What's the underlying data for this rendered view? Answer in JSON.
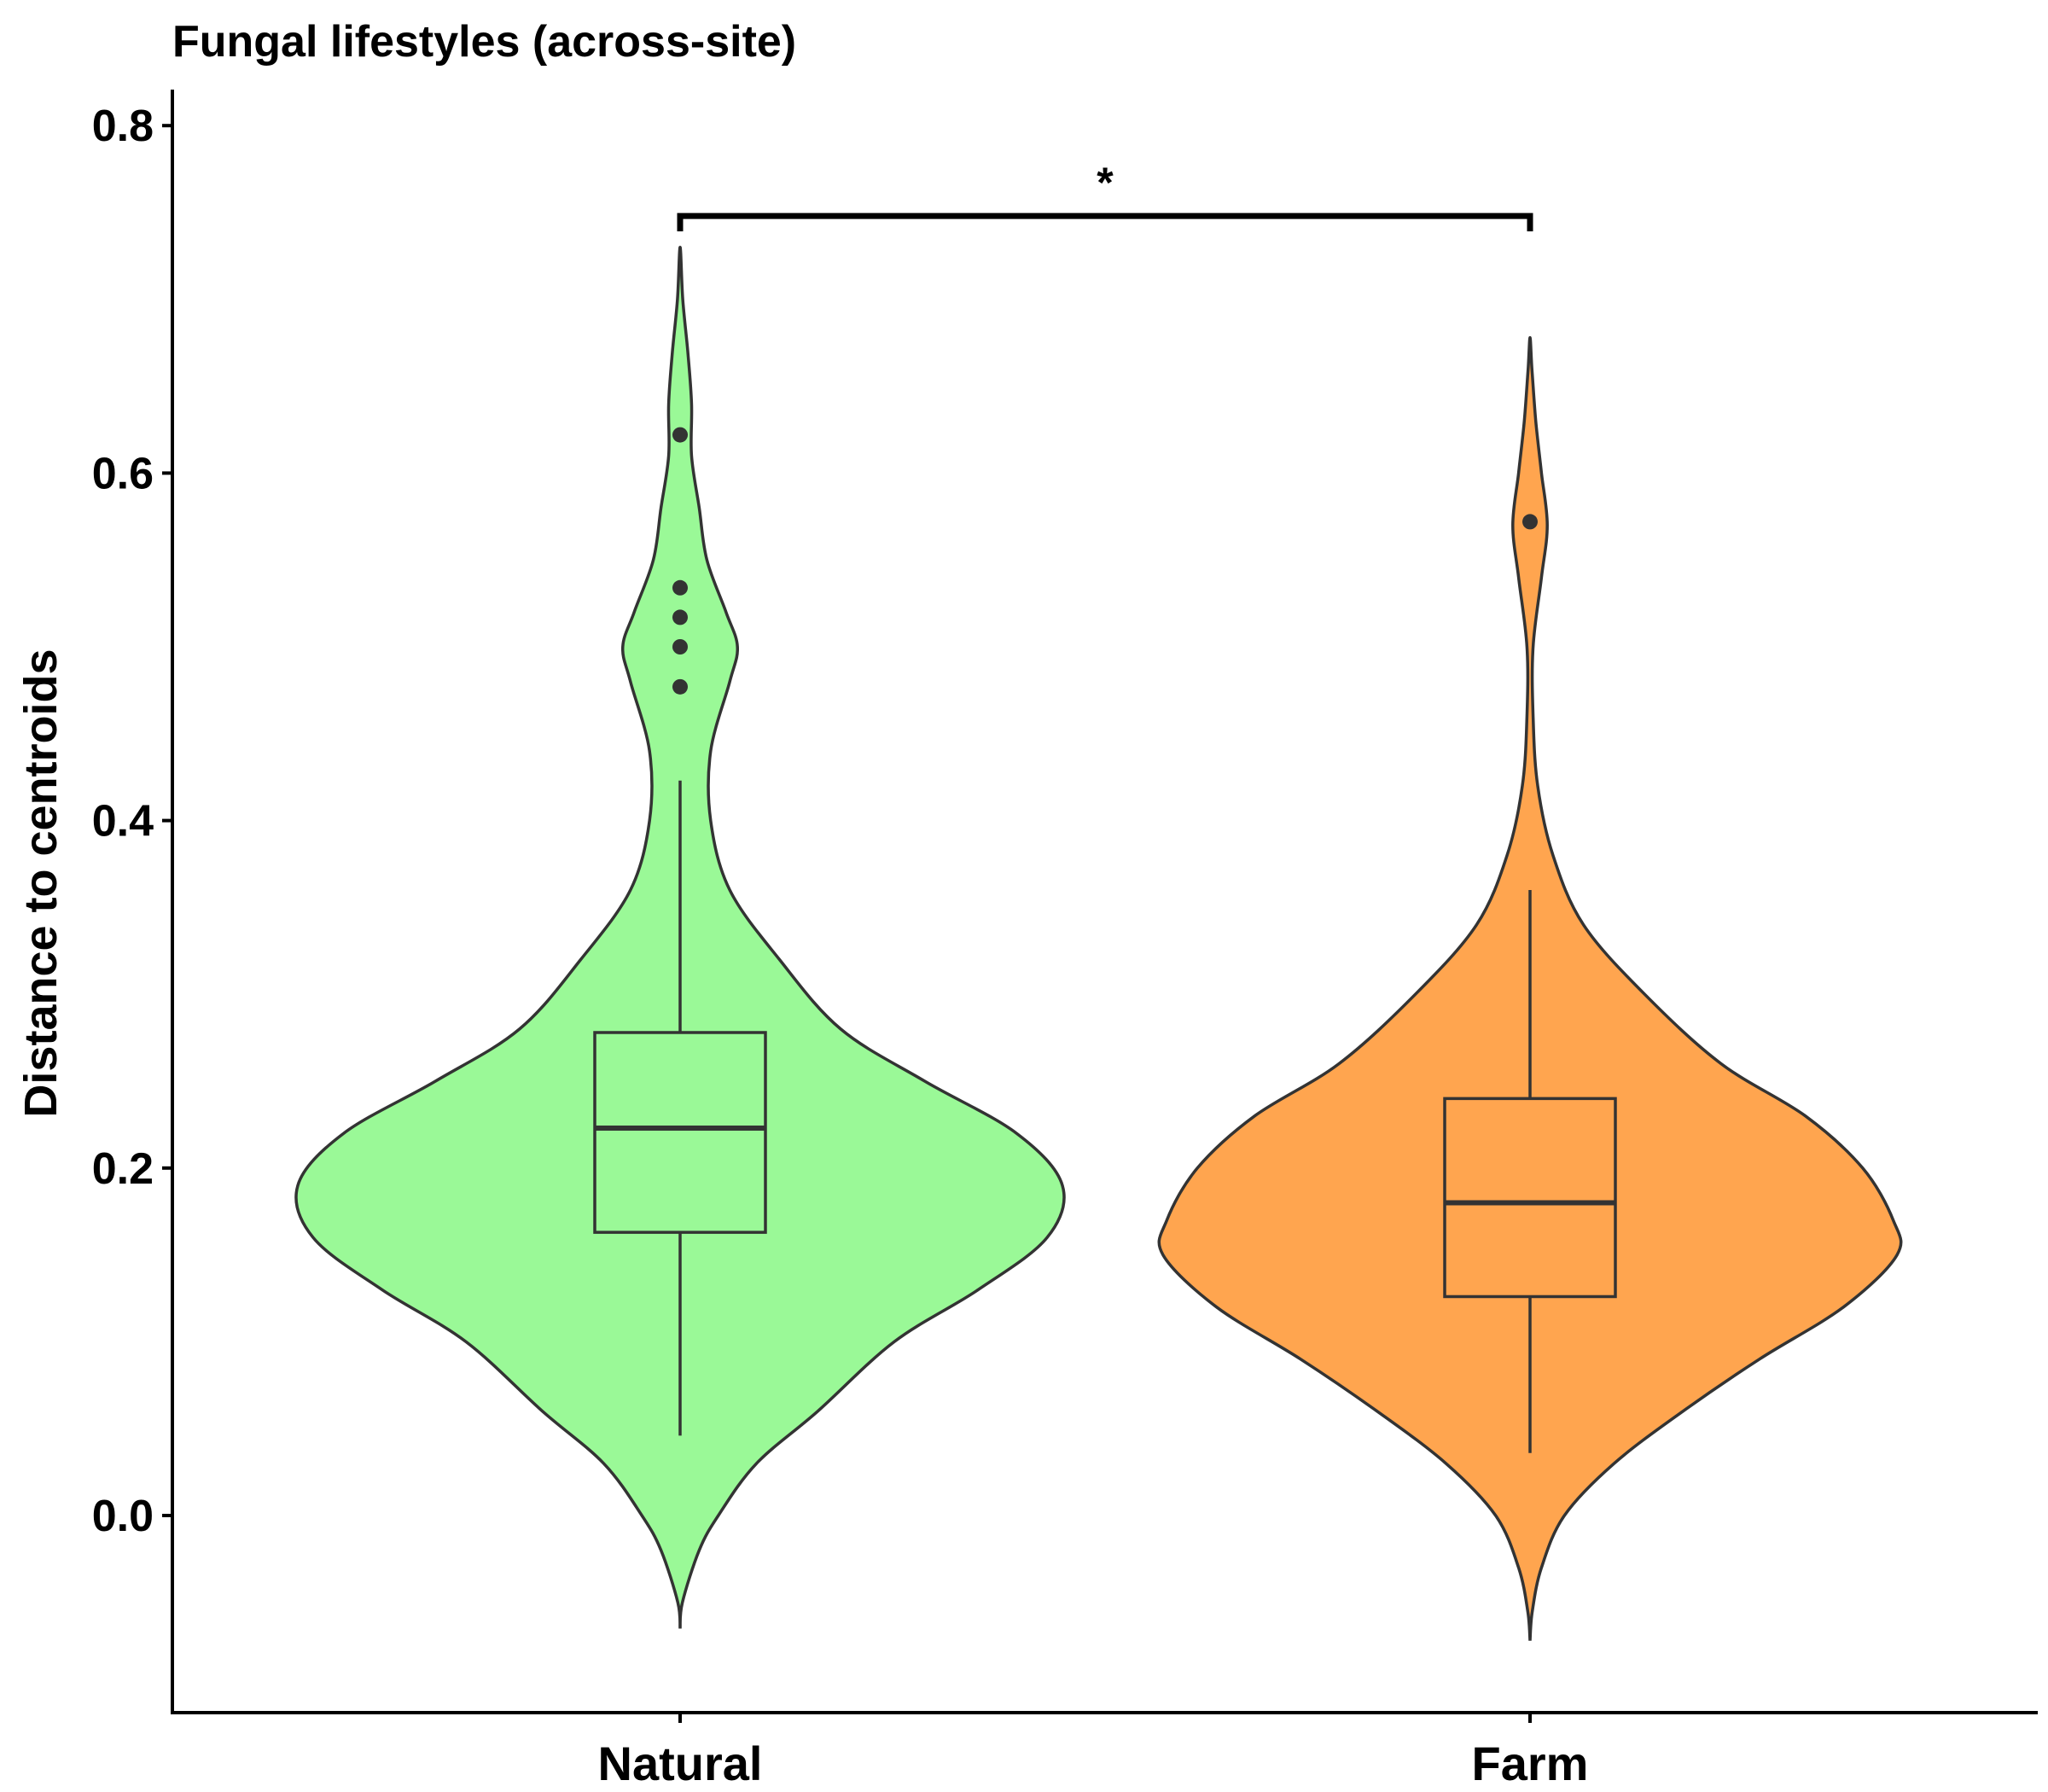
{
  "chart_data": {
    "type": "violin",
    "title": "Fungal lifestyles (across-site)",
    "xlabel": "",
    "ylabel": "Distance to centroids",
    "ylim": [
      -0.115,
      0.82
    ],
    "yticks": [
      0.0,
      0.2,
      0.4,
      0.6,
      0.8
    ],
    "ytick_labels": [
      "0.0",
      "0.2",
      "0.4",
      "0.6",
      "0.8"
    ],
    "categories": [
      "Natural",
      "Farm"
    ],
    "grid": false,
    "legend": "none",
    "series": [
      {
        "category": "Natural",
        "color": "#9AF997",
        "box": {
          "whisker_low": 0.046,
          "q1": 0.163,
          "median": 0.223,
          "q3": 0.278,
          "whisker_high": 0.423
        },
        "outliers": [
          0.622,
          0.534,
          0.517,
          0.5,
          0.477
        ],
        "violin_range": [
          -0.065,
          0.73
        ]
      },
      {
        "category": "Farm",
        "color": "#FFA54F",
        "box": {
          "whisker_low": 0.036,
          "q1": 0.126,
          "median": 0.18,
          "q3": 0.24,
          "whisker_high": 0.36
        },
        "outliers": [
          0.572
        ],
        "violin_range": [
          -0.072,
          0.678
        ]
      }
    ],
    "significance": {
      "between": [
        "Natural",
        "Farm"
      ],
      "y": 0.748,
      "label": "*"
    }
  }
}
